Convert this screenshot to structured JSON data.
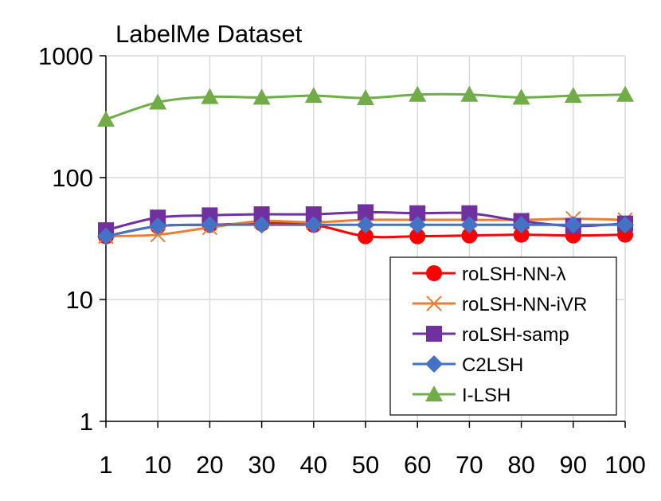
{
  "chart_data": {
    "type": "line",
    "title": "LabelMe Dataset",
    "xlabel": "",
    "ylabel": "",
    "x": [
      "1",
      "10",
      "20",
      "30",
      "40",
      "50",
      "60",
      "70",
      "80",
      "90",
      "100"
    ],
    "yscale": "log",
    "ylim": [
      1,
      1000
    ],
    "yticks": [
      "1",
      "10",
      "100",
      "1000"
    ],
    "grid": true,
    "legend_position": "bottom-right",
    "series": [
      {
        "name": "roLSH-NN-λ",
        "color": "#ff0000",
        "marker": "circle",
        "values": [
          33,
          40,
          41,
          42,
          41,
          33,
          33,
          33.5,
          34,
          33.5,
          34
        ]
      },
      {
        "name": "roLSH-NN-iVR",
        "color": "#ed7d31",
        "marker": "x",
        "values": [
          33,
          34,
          39,
          44,
          43,
          45,
          45,
          45,
          45,
          46,
          45
        ]
      },
      {
        "name": "roLSH-samp",
        "color": "#7030a0",
        "marker": "square",
        "values": [
          37,
          47,
          49,
          50,
          50,
          52,
          51,
          51,
          44,
          40,
          42
        ]
      },
      {
        "name": "C2LSH",
        "color": "#4472c4",
        "marker": "diamond",
        "values": [
          33,
          40,
          41,
          41,
          41,
          41,
          41,
          41,
          41,
          41,
          41
        ]
      },
      {
        "name": "I-LSH",
        "color": "#70ad47",
        "marker": "triangle",
        "values": [
          300,
          415,
          460,
          455,
          470,
          450,
          480,
          480,
          455,
          470,
          480
        ]
      }
    ]
  }
}
